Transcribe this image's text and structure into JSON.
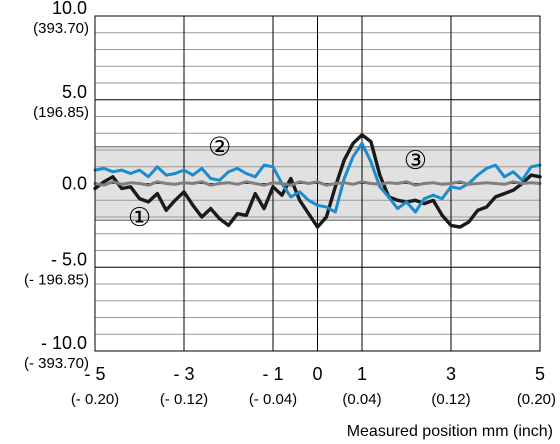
{
  "chart_data": {
    "type": "line",
    "xlabel": "Measured position mm (inch)",
    "ylabel": "",
    "xlim": [
      -5,
      5
    ],
    "ylim": [
      -10,
      10
    ],
    "grid": true,
    "x_ticks": [
      {
        "value": -5,
        "label": "- 5",
        "sublabel": "(- 0.20)"
      },
      {
        "value": -3,
        "label": "- 3",
        "sublabel": "(- 0.12)"
      },
      {
        "value": -1,
        "label": "- 1",
        "sublabel": "(- 0.04)"
      },
      {
        "value": 0,
        "label": "0",
        "sublabel": ""
      },
      {
        "value": 1,
        "label": "1",
        "sublabel": "(0.04)"
      },
      {
        "value": 3,
        "label": "3",
        "sublabel": "(0.12)"
      },
      {
        "value": 5,
        "label": "5",
        "sublabel": "(0.20)"
      }
    ],
    "y_ticks": [
      {
        "value": 10,
        "label": "10.0",
        "sublabel": "(393.70)"
      },
      {
        "value": 5,
        "label": "5.0",
        "sublabel": "(196.85)"
      },
      {
        "value": 0,
        "label": "0.0",
        "sublabel": ""
      },
      {
        "value": -5,
        "label": "- 5.0",
        "sublabel": "(- 196.85)"
      },
      {
        "value": -10,
        "label": "- 10.0",
        "sublabel": "(- 393.70)"
      }
    ],
    "band": {
      "y_min": -2.2,
      "y_max": 2.2,
      "color": "#e1e1e1"
    },
    "series": [
      {
        "marker": "①",
        "color": "#1a1a1a",
        "x": [
          -5.0,
          -4.8,
          -4.6,
          -4.4,
          -4.2,
          -4.0,
          -3.8,
          -3.6,
          -3.4,
          -3.2,
          -3.0,
          -2.8,
          -2.6,
          -2.4,
          -2.2,
          -2.0,
          -1.8,
          -1.6,
          -1.4,
          -1.2,
          -1.0,
          -0.8,
          -0.6,
          -0.4,
          -0.2,
          0.0,
          0.2,
          0.4,
          0.6,
          0.8,
          1.0,
          1.2,
          1.4,
          1.6,
          1.8,
          2.0,
          2.2,
          2.4,
          2.6,
          2.8,
          3.0,
          3.2,
          3.4,
          3.6,
          3.8,
          4.0,
          4.2,
          4.4,
          4.6,
          4.8,
          5.0
        ],
        "y": [
          -0.3,
          0.1,
          0.4,
          -0.3,
          -0.2,
          -0.9,
          -1.1,
          -0.6,
          -1.6,
          -1.0,
          -0.5,
          -1.3,
          -2.0,
          -1.5,
          -2.1,
          -2.5,
          -1.8,
          -1.9,
          -0.6,
          -1.5,
          -0.2,
          -0.7,
          0.3,
          -1.0,
          -1.8,
          -2.6,
          -2.0,
          -0.2,
          1.4,
          2.4,
          2.9,
          2.5,
          0.5,
          -0.8,
          -1.0,
          -1.1,
          -1.0,
          -1.2,
          -1.0,
          -1.9,
          -2.5,
          -2.6,
          -2.3,
          -1.6,
          -1.4,
          -0.8,
          -0.6,
          -0.4,
          0.0,
          0.5,
          0.4
        ]
      },
      {
        "marker": "②",
        "color": "#1b8ccd",
        "x": [
          -5.0,
          -4.8,
          -4.6,
          -4.4,
          -4.2,
          -4.0,
          -3.8,
          -3.6,
          -3.4,
          -3.2,
          -3.0,
          -2.8,
          -2.6,
          -2.4,
          -2.2,
          -2.0,
          -1.8,
          -1.6,
          -1.4,
          -1.2,
          -1.0,
          -0.8,
          -0.6,
          -0.4,
          -0.2,
          0.0,
          0.2,
          0.4,
          0.6,
          0.8,
          1.0,
          1.2,
          1.4,
          1.6,
          1.8,
          2.0,
          2.2,
          2.4,
          2.6,
          2.8,
          3.0,
          3.2,
          3.4,
          3.6,
          3.8,
          4.0,
          4.2,
          4.4,
          4.6,
          4.8,
          5.0
        ],
        "y": [
          0.8,
          0.9,
          0.7,
          0.8,
          0.6,
          0.8,
          0.4,
          1.0,
          0.5,
          0.6,
          0.8,
          0.5,
          0.9,
          0.3,
          0.2,
          0.7,
          0.9,
          0.6,
          0.4,
          1.1,
          1.0,
          0.0,
          -0.8,
          -0.5,
          -1.0,
          -1.3,
          -1.4,
          -1.7,
          0.3,
          1.6,
          2.4,
          1.3,
          -0.2,
          -0.8,
          -1.5,
          -1.1,
          -1.7,
          -0.9,
          -0.7,
          -0.9,
          -0.2,
          -0.3,
          0.0,
          0.5,
          0.9,
          1.1,
          0.4,
          0.7,
          0.2,
          1.0,
          1.1
        ]
      },
      {
        "marker": "③",
        "color": "#7f7f7f",
        "x": [
          -5.0,
          -4.8,
          -4.6,
          -4.4,
          -4.2,
          -4.0,
          -3.8,
          -3.6,
          -3.4,
          -3.2,
          -3.0,
          -2.8,
          -2.6,
          -2.4,
          -2.2,
          -2.0,
          -1.8,
          -1.6,
          -1.4,
          -1.2,
          -1.0,
          -0.8,
          -0.6,
          -0.4,
          -0.2,
          0.0,
          0.2,
          0.4,
          0.6,
          0.8,
          1.0,
          1.2,
          1.4,
          1.6,
          1.8,
          2.0,
          2.2,
          2.4,
          2.6,
          2.8,
          3.0,
          3.2,
          3.4,
          3.6,
          3.8,
          4.0,
          4.2,
          4.4,
          4.6,
          4.8,
          5.0
        ],
        "y": [
          0.0,
          -0.1,
          0.1,
          -0.05,
          0.05,
          0.0,
          -0.1,
          0.1,
          0.0,
          -0.05,
          0.05,
          0.0,
          0.1,
          -0.1,
          0.0,
          0.05,
          -0.05,
          0.1,
          0.0,
          -0.1,
          0.05,
          0.0,
          -0.1,
          0.1,
          0.0,
          0.1,
          -0.1,
          0.0,
          0.05,
          -0.05,
          0.1,
          0.0,
          -0.05,
          0.05,
          0.0,
          0.1,
          -0.1,
          0.0,
          0.05,
          -0.05,
          0.0,
          0.1,
          -0.05,
          0.0,
          0.05,
          0.0,
          -0.05,
          0.1,
          0.0,
          0.05,
          0.0
        ]
      }
    ],
    "annotations": [
      {
        "text": "①",
        "x": -4.0,
        "y": -2.0
      },
      {
        "text": "②",
        "x": -2.2,
        "y": 2.2
      },
      {
        "text": "③",
        "x": 2.2,
        "y": 1.4
      }
    ]
  }
}
